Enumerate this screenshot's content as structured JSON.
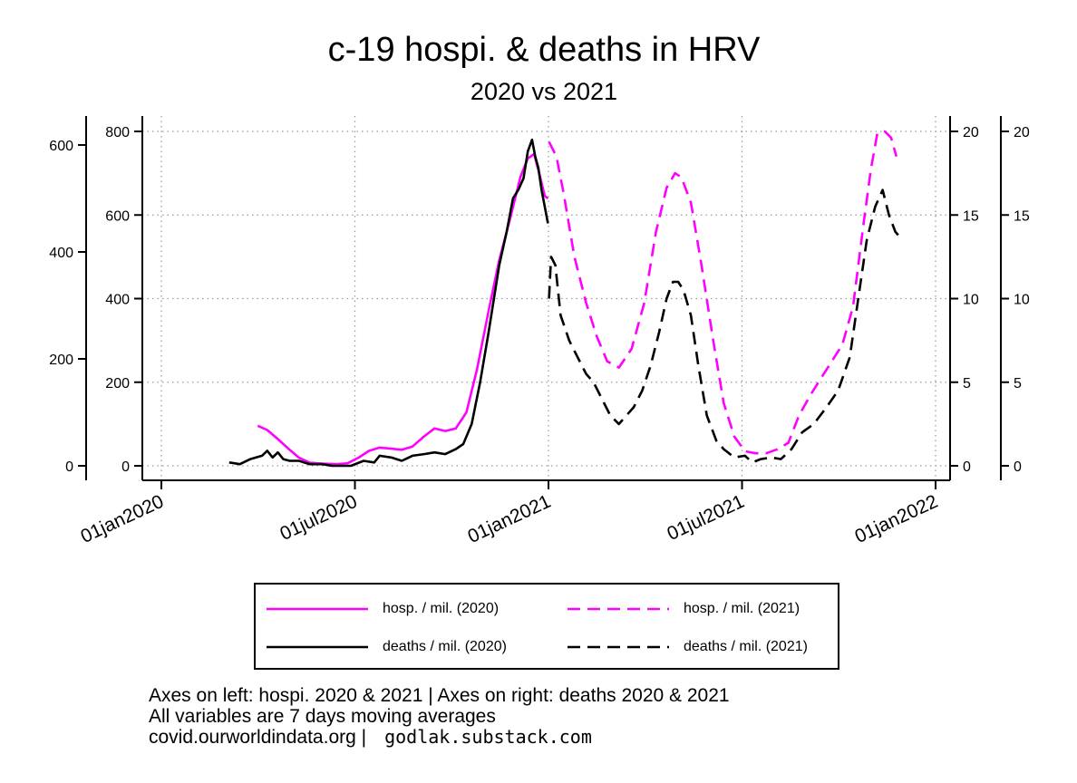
{
  "title": "c-19 hospi. & deaths in HRV",
  "subtitle": "2020 vs 2021",
  "notes": {
    "line1": "Axes on left: hospi. 2020 & 2021 | Axes on right: deaths 2020 & 2021",
    "line2": "All variables are 7 days moving averages",
    "source": "covid.ourworldindata.org |",
    "author": "godlak.substack.com"
  },
  "colors": {
    "hosp": "#ff00ff",
    "deaths": "#000000",
    "grid": "#9a9a9a"
  },
  "chart_data": {
    "type": "line",
    "x_axis": {
      "ticks": [
        "01jan2020",
        "01jul2020",
        "01jan2021",
        "01jul2021",
        "01jan2022"
      ],
      "range": [
        "2020-01-01",
        "2022-01-01"
      ]
    },
    "y_axes": [
      {
        "side": "left-outer",
        "applies_to": "hosp. / mil. (2020)",
        "ticks": [
          0,
          200,
          400,
          600
        ],
        "range": [
          0,
          630
        ]
      },
      {
        "side": "left-inner",
        "applies_to": "hosp. / mil. (2021)",
        "ticks": [
          0,
          200,
          400,
          600,
          800
        ],
        "range": [
          0,
          800
        ]
      },
      {
        "side": "right-inner",
        "applies_to": "deaths / mil. (2021)",
        "ticks": [
          0,
          5,
          10,
          15,
          20
        ],
        "range": [
          0,
          20
        ]
      },
      {
        "side": "right-outer",
        "applies_to": "deaths / mil. (2020)",
        "ticks": [
          0,
          5,
          10,
          15,
          20
        ],
        "range": [
          0,
          20
        ]
      }
    ],
    "grid": true,
    "legend_position": "bottom",
    "series": [
      {
        "name": "hosp. / mil. (2020)",
        "axis": 0,
        "dash": "solid",
        "color": "#ff00ff",
        "points": [
          [
            "2020-04-01",
            75
          ],
          [
            "2020-04-10",
            67
          ],
          [
            "2020-04-20",
            50
          ],
          [
            "2020-05-01",
            30
          ],
          [
            "2020-05-10",
            15
          ],
          [
            "2020-05-20",
            6
          ],
          [
            "2020-06-01",
            4
          ],
          [
            "2020-06-15",
            3
          ],
          [
            "2020-06-25",
            5
          ],
          [
            "2020-07-05",
            15
          ],
          [
            "2020-07-15",
            28
          ],
          [
            "2020-07-25",
            34
          ],
          [
            "2020-08-05",
            32
          ],
          [
            "2020-08-15",
            30
          ],
          [
            "2020-08-25",
            36
          ],
          [
            "2020-09-05",
            55
          ],
          [
            "2020-09-15",
            70
          ],
          [
            "2020-09-25",
            65
          ],
          [
            "2020-10-05",
            70
          ],
          [
            "2020-10-15",
            100
          ],
          [
            "2020-10-25",
            180
          ],
          [
            "2020-11-05",
            290
          ],
          [
            "2020-11-15",
            385
          ],
          [
            "2020-11-25",
            460
          ],
          [
            "2020-12-05",
            540
          ],
          [
            "2020-12-12",
            575
          ],
          [
            "2020-12-18",
            583
          ],
          [
            "2020-12-23",
            545
          ],
          [
            "2020-12-28",
            505
          ],
          [
            "2020-12-31",
            500
          ]
        ]
      },
      {
        "name": "deaths / mil. (2020)",
        "axis": 3,
        "dash": "solid",
        "color": "#000000",
        "points": [
          [
            "2020-03-05",
            0.2
          ],
          [
            "2020-03-15",
            0.1
          ],
          [
            "2020-03-25",
            0.4
          ],
          [
            "2020-04-05",
            0.6
          ],
          [
            "2020-04-10",
            0.9
          ],
          [
            "2020-04-15",
            0.5
          ],
          [
            "2020-04-20",
            0.8
          ],
          [
            "2020-04-25",
            0.4
          ],
          [
            "2020-05-01",
            0.3
          ],
          [
            "2020-05-10",
            0.3
          ],
          [
            "2020-05-20",
            0.1
          ],
          [
            "2020-06-01",
            0.1
          ],
          [
            "2020-06-10",
            0.0
          ],
          [
            "2020-06-20",
            0.0
          ],
          [
            "2020-06-28",
            0.0
          ],
          [
            "2020-07-10",
            0.3
          ],
          [
            "2020-07-20",
            0.2
          ],
          [
            "2020-07-25",
            0.6
          ],
          [
            "2020-08-05",
            0.5
          ],
          [
            "2020-08-15",
            0.3
          ],
          [
            "2020-08-25",
            0.6
          ],
          [
            "2020-09-05",
            0.7
          ],
          [
            "2020-09-15",
            0.8
          ],
          [
            "2020-09-25",
            0.7
          ],
          [
            "2020-10-05",
            1.0
          ],
          [
            "2020-10-12",
            1.3
          ],
          [
            "2020-10-20",
            2.5
          ],
          [
            "2020-10-28",
            5.0
          ],
          [
            "2020-11-05",
            8.0
          ],
          [
            "2020-11-15",
            12.0
          ],
          [
            "2020-11-22",
            14.0
          ],
          [
            "2020-11-28",
            16.0
          ],
          [
            "2020-12-03",
            16.5
          ],
          [
            "2020-12-08",
            17.2
          ],
          [
            "2020-12-12",
            18.8
          ],
          [
            "2020-12-16",
            19.5
          ],
          [
            "2020-12-19",
            18.5
          ],
          [
            "2020-12-22",
            17.8
          ],
          [
            "2020-12-25",
            16.5
          ],
          [
            "2020-12-28",
            15.5
          ],
          [
            "2020-12-31",
            14.5
          ]
        ]
      },
      {
        "name": "hosp. / mil. (2021)",
        "axis": 1,
        "dash": "dashed",
        "color": "#ff00ff",
        "points": [
          [
            "2021-01-01",
            775
          ],
          [
            "2021-01-08",
            740
          ],
          [
            "2021-01-15",
            650
          ],
          [
            "2021-01-25",
            500
          ],
          [
            "2021-02-05",
            390
          ],
          [
            "2021-02-15",
            310
          ],
          [
            "2021-02-25",
            250
          ],
          [
            "2021-03-08",
            235
          ],
          [
            "2021-03-20",
            280
          ],
          [
            "2021-04-01",
            390
          ],
          [
            "2021-04-12",
            560
          ],
          [
            "2021-04-22",
            665
          ],
          [
            "2021-04-30",
            700
          ],
          [
            "2021-05-06",
            690
          ],
          [
            "2021-05-15",
            630
          ],
          [
            "2021-05-25",
            480
          ],
          [
            "2021-06-05",
            300
          ],
          [
            "2021-06-15",
            150
          ],
          [
            "2021-06-25",
            70
          ],
          [
            "2021-07-05",
            35
          ],
          [
            "2021-07-15",
            30
          ],
          [
            "2021-07-25",
            30
          ],
          [
            "2021-08-05",
            40
          ],
          [
            "2021-08-15",
            55
          ],
          [
            "2021-08-25",
            120
          ],
          [
            "2021-09-05",
            170
          ],
          [
            "2021-09-15",
            210
          ],
          [
            "2021-09-25",
            250
          ],
          [
            "2021-10-05",
            290
          ],
          [
            "2021-10-15",
            380
          ],
          [
            "2021-10-25",
            580
          ],
          [
            "2021-11-01",
            710
          ],
          [
            "2021-11-07",
            795
          ],
          [
            "2021-11-14",
            800
          ],
          [
            "2021-11-20",
            785
          ],
          [
            "2021-11-25",
            740
          ]
        ]
      },
      {
        "name": "deaths / mil. (2021)",
        "axis": 2,
        "dash": "dashed",
        "color": "#000000",
        "points": [
          [
            "2021-01-01",
            10.0
          ],
          [
            "2021-01-03",
            12.5
          ],
          [
            "2021-01-07",
            12.0
          ],
          [
            "2021-01-12",
            9.0
          ],
          [
            "2021-01-20",
            7.5
          ],
          [
            "2021-01-28",
            6.5
          ],
          [
            "2021-02-05",
            5.5
          ],
          [
            "2021-02-12",
            5.0
          ],
          [
            "2021-02-20",
            4.0
          ],
          [
            "2021-02-28",
            3.0
          ],
          [
            "2021-03-08",
            2.5
          ],
          [
            "2021-03-15",
            3.0
          ],
          [
            "2021-03-22",
            3.5
          ],
          [
            "2021-03-30",
            4.5
          ],
          [
            "2021-04-07",
            6.0
          ],
          [
            "2021-04-15",
            8.0
          ],
          [
            "2021-04-22",
            10.0
          ],
          [
            "2021-04-28",
            11.0
          ],
          [
            "2021-05-03",
            11.0
          ],
          [
            "2021-05-08",
            10.5
          ],
          [
            "2021-05-15",
            9.0
          ],
          [
            "2021-05-22",
            6.0
          ],
          [
            "2021-05-30",
            3.0
          ],
          [
            "2021-06-08",
            1.5
          ],
          [
            "2021-06-15",
            1.0
          ],
          [
            "2021-06-25",
            0.5
          ],
          [
            "2021-07-05",
            0.6
          ],
          [
            "2021-07-12",
            0.2
          ],
          [
            "2021-07-20",
            0.4
          ],
          [
            "2021-07-30",
            0.5
          ],
          [
            "2021-08-08",
            0.4
          ],
          [
            "2021-08-18",
            1.0
          ],
          [
            "2021-08-28",
            2.0
          ],
          [
            "2021-09-08",
            2.5
          ],
          [
            "2021-09-20",
            3.5
          ],
          [
            "2021-10-01",
            4.5
          ],
          [
            "2021-10-12",
            6.5
          ],
          [
            "2021-10-20",
            10.0
          ],
          [
            "2021-10-28",
            13.5
          ],
          [
            "2021-11-05",
            15.5
          ],
          [
            "2021-11-12",
            16.5
          ],
          [
            "2021-11-18",
            15.0
          ],
          [
            "2021-11-24",
            14.0
          ],
          [
            "2021-11-28",
            13.7
          ]
        ]
      }
    ]
  },
  "legend": [
    {
      "label": "hosp. / mil. (2020)",
      "color": "#ff00ff",
      "dash": "solid"
    },
    {
      "label": "hosp. / mil. (2021)",
      "color": "#ff00ff",
      "dash": "dashed"
    },
    {
      "label": "deaths / mil. (2020)",
      "color": "#000000",
      "dash": "solid"
    },
    {
      "label": "deaths / mil. (2021)",
      "color": "#000000",
      "dash": "dashed"
    }
  ]
}
